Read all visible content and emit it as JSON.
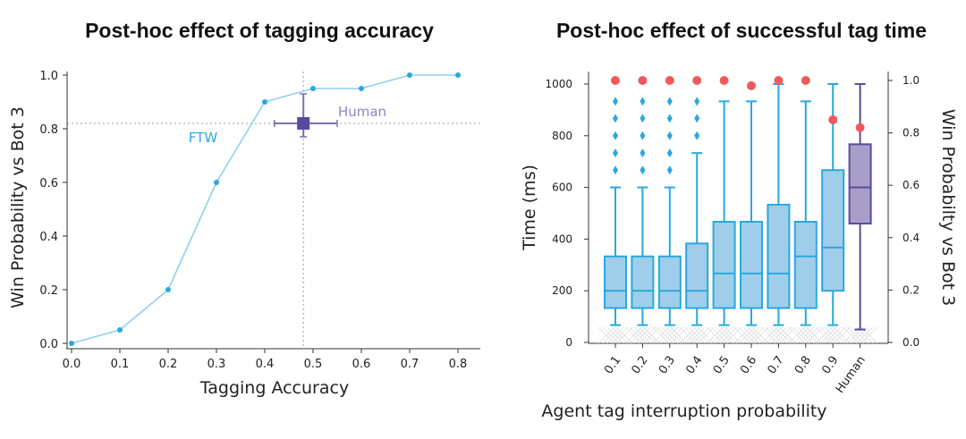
{
  "chart_data": [
    {
      "type": "line",
      "title": "Post-hoc effect of tagging accuracy",
      "xlabel": "Tagging Accuracy",
      "ylabel": "Win Probability vs Bot 3",
      "xlim": [
        0.0,
        0.85
      ],
      "ylim": [
        0.0,
        1.0
      ],
      "xticks": [
        "0.0",
        "0.1",
        "0.2",
        "0.3",
        "0.4",
        "0.5",
        "0.6",
        "0.7",
        "0.8"
      ],
      "yticks": [
        "0.0",
        "0.2",
        "0.4",
        "0.6",
        "0.8",
        "1.0"
      ],
      "series": [
        {
          "name": "FTW",
          "color": "#29a8e0",
          "x": [
            0.0,
            0.1,
            0.2,
            0.3,
            0.4,
            0.5,
            0.6,
            0.7,
            0.8
          ],
          "y": [
            0.0,
            0.05,
            0.2,
            0.6,
            0.9,
            0.95,
            0.95,
            1.0,
            1.0
          ]
        }
      ],
      "human": {
        "name": "Human",
        "color": "#5b4a9e",
        "x": 0.48,
        "y": 0.82,
        "x_err": [
          0.42,
          0.55
        ],
        "y_err": [
          0.77,
          0.93
        ]
      }
    },
    {
      "type": "box",
      "title": "Post-hoc effect of successful tag time",
      "xlabel": "Agent tag interruption probability",
      "ylabel": "Time (ms)",
      "ylabel_right": "Win Probabilty vs Bot 3",
      "ylim": [
        0,
        1050
      ],
      "ylim_right": [
        0.0,
        1.0
      ],
      "yticks": [
        "0",
        "200",
        "400",
        "600",
        "800",
        "1000"
      ],
      "yticks_right": [
        "0.0",
        "0.2",
        "0.4",
        "0.6",
        "0.8",
        "1.0"
      ],
      "categories": [
        "0.1",
        "0.2",
        "0.3",
        "0.4",
        "0.5",
        "0.6",
        "0.7",
        "0.8",
        "0.9",
        "Human"
      ],
      "boxes": [
        {
          "min": 67,
          "q1": 133,
          "median": 200,
          "q3": 333,
          "max": 600,
          "outliers": [
            667,
            733,
            800,
            867,
            933
          ]
        },
        {
          "min": 67,
          "q1": 133,
          "median": 200,
          "q3": 333,
          "max": 600,
          "outliers": [
            667,
            733,
            800,
            867,
            933
          ]
        },
        {
          "min": 67,
          "q1": 133,
          "median": 200,
          "q3": 333,
          "max": 600,
          "outliers": [
            667,
            733,
            800,
            867,
            933
          ]
        },
        {
          "min": 67,
          "q1": 133,
          "median": 200,
          "q3": 383,
          "max": 733,
          "outliers": [
            800,
            867,
            933
          ]
        },
        {
          "min": 67,
          "q1": 133,
          "median": 267,
          "q3": 467,
          "max": 933,
          "outliers": []
        },
        {
          "min": 67,
          "q1": 133,
          "median": 267,
          "q3": 467,
          "max": 933,
          "outliers": []
        },
        {
          "min": 67,
          "q1": 133,
          "median": 267,
          "q3": 533,
          "max": 1000,
          "outliers": []
        },
        {
          "min": 67,
          "q1": 133,
          "median": 333,
          "q3": 467,
          "max": 933,
          "outliers": []
        },
        {
          "min": 67,
          "q1": 200,
          "median": 367,
          "q3": 667,
          "max": 1000,
          "outliers": []
        },
        {
          "min": 50,
          "q1": 460,
          "median": 600,
          "q3": 767,
          "max": 1000,
          "outliers": []
        }
      ],
      "win_probability": [
        1.0,
        1.0,
        1.0,
        1.0,
        1.0,
        0.98,
        1.0,
        1.0,
        0.85,
        0.82
      ],
      "colors": {
        "agent_fill": "#a0cdea",
        "agent_edge": "#29a8e0",
        "human_fill": "#a99ec9",
        "human_edge": "#5b4a9e",
        "win_dot": "#f05a5a",
        "right_axis_label": "#f06b6b"
      }
    }
  ]
}
